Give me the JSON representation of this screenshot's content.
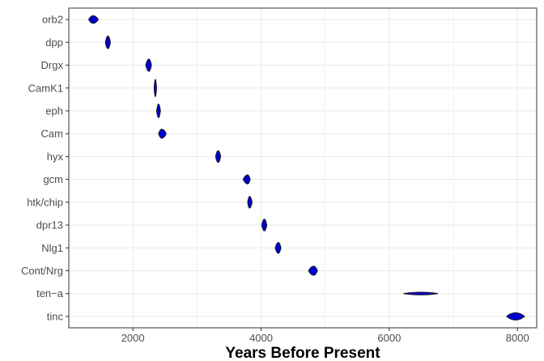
{
  "chart_data": {
    "type": "violin",
    "title": "",
    "xlabel": "Years Before Present",
    "ylabel": "",
    "xlim": [
      1000,
      8300
    ],
    "x_ticks": [
      2000,
      4000,
      6000,
      8000
    ],
    "grid": true,
    "legend": "none",
    "colors": {
      "fill": "#0000cc",
      "outline": "#1a1a1a",
      "grid": "#ebebeb",
      "panel_border": "#333333"
    },
    "categories": [
      "orb2",
      "dpp",
      "Drgx",
      "CamK1",
      "eph",
      "Cam",
      "hyx",
      "gcm",
      "htk/chip",
      "dpr13",
      "Nlg1",
      "Cont/Nrg",
      "ten−a",
      "tinc"
    ],
    "values": [
      1380,
      1610,
      2250,
      2350,
      2400,
      2450,
      3330,
      3790,
      3820,
      4050,
      4270,
      4820,
      6500,
      7970
    ],
    "ranges": [
      [
        1310,
        1460
      ],
      [
        1570,
        1650
      ],
      [
        2200,
        2290
      ],
      [
        2330,
        2370
      ],
      [
        2370,
        2430
      ],
      [
        2400,
        2520
      ],
      [
        3290,
        3370
      ],
      [
        3720,
        3830
      ],
      [
        3790,
        3860
      ],
      [
        4010,
        4090
      ],
      [
        4220,
        4310
      ],
      [
        4740,
        4880
      ],
      [
        6220,
        6760
      ],
      [
        7830,
        8110
      ]
    ],
    "peak_halfwidths": [
      0.17,
      0.28,
      0.27,
      0.38,
      0.3,
      0.2,
      0.26,
      0.2,
      0.26,
      0.26,
      0.24,
      0.2,
      0.06,
      0.16
    ]
  }
}
